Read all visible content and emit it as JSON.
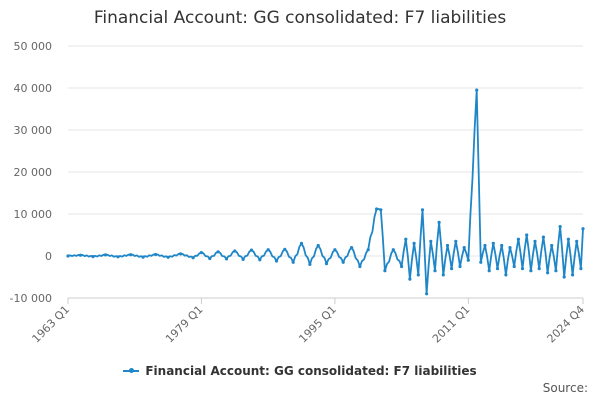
{
  "chart_data": {
    "type": "line",
    "title": "Financial Account: GG consolidated: F7 liabilities",
    "xlabel": "",
    "ylabel": "",
    "x_range": [
      "1963 Q1",
      "2024 Q4"
    ],
    "x_tick_labels": [
      "1963 Q1",
      "1979 Q1",
      "1995 Q1",
      "2011 Q1",
      "2024 Q4"
    ],
    "ylim": [
      -10000,
      50000
    ],
    "y_tick_values": [
      -10000,
      0,
      10000,
      20000,
      30000,
      40000,
      50000
    ],
    "y_tick_labels": [
      "-10 000",
      "0",
      "10 000",
      "20 000",
      "30 000",
      "40 000",
      "50 000"
    ],
    "grid": "horizontal",
    "legend_position": "bottom",
    "series": [
      {
        "name": "Financial Account: GG consolidated: F7 liabilities",
        "color": "#1f86c8",
        "points": [
          [
            "1963 Q1",
            0
          ],
          [
            "1964 Q3",
            200
          ],
          [
            "1966 Q1",
            -150
          ],
          [
            "1967 Q3",
            250
          ],
          [
            "1969 Q1",
            -200
          ],
          [
            "1970 Q3",
            300
          ],
          [
            "1972 Q1",
            -250
          ],
          [
            "1973 Q3",
            350
          ],
          [
            "1975 Q1",
            -300
          ],
          [
            "1976 Q3",
            500
          ],
          [
            "1978 Q1",
            -400
          ],
          [
            "1979 Q1",
            800
          ],
          [
            "1980 Q1",
            -600
          ],
          [
            "1981 Q1",
            1000
          ],
          [
            "1982 Q1",
            -700
          ],
          [
            "1983 Q1",
            1200
          ],
          [
            "1984 Q1",
            -800
          ],
          [
            "1985 Q1",
            1400
          ],
          [
            "1986 Q1",
            -900
          ],
          [
            "1987 Q1",
            1500
          ],
          [
            "1988 Q1",
            -1200
          ],
          [
            "1989 Q1",
            1600
          ],
          [
            "1990 Q1",
            -1500
          ],
          [
            "1991 Q1",
            3000
          ],
          [
            "1992 Q1",
            -2000
          ],
          [
            "1993 Q1",
            2500
          ],
          [
            "1994 Q1",
            -1800
          ],
          [
            "1995 Q1",
            1500
          ],
          [
            "1996 Q1",
            -1500
          ],
          [
            "1997 Q1",
            2000
          ],
          [
            "1998 Q1",
            -2500
          ],
          [
            "1999 Q1",
            1500
          ],
          [
            "2000 Q1",
            11200
          ],
          [
            "2000 Q3",
            11000
          ],
          [
            "2001 Q1",
            -3500
          ],
          [
            "2002 Q1",
            1500
          ],
          [
            "2003 Q1",
            -2500
          ],
          [
            "2003 Q3",
            4000
          ],
          [
            "2004 Q1",
            -5500
          ],
          [
            "2004 Q3",
            3000
          ],
          [
            "2005 Q1",
            -4500
          ],
          [
            "2005 Q3",
            11000
          ],
          [
            "2006 Q1",
            -9000
          ],
          [
            "2006 Q3",
            3500
          ],
          [
            "2007 Q1",
            -3500
          ],
          [
            "2007 Q3",
            8000
          ],
          [
            "2008 Q1",
            -4500
          ],
          [
            "2008 Q3",
            2500
          ],
          [
            "2009 Q1",
            -3000
          ],
          [
            "2009 Q3",
            3500
          ],
          [
            "2010 Q1",
            -2500
          ],
          [
            "2010 Q3",
            2000
          ],
          [
            "2011 Q1",
            -1000
          ],
          [
            "2012 Q1",
            39500
          ],
          [
            "2012 Q3",
            -1500
          ],
          [
            "2013 Q1",
            2500
          ],
          [
            "2013 Q3",
            -3500
          ],
          [
            "2014 Q1",
            3000
          ],
          [
            "2014 Q3",
            -3000
          ],
          [
            "2015 Q1",
            2500
          ],
          [
            "2015 Q3",
            -4500
          ],
          [
            "2016 Q1",
            2000
          ],
          [
            "2016 Q3",
            -2500
          ],
          [
            "2017 Q1",
            4000
          ],
          [
            "2017 Q3",
            -3000
          ],
          [
            "2018 Q1",
            5000
          ],
          [
            "2018 Q3",
            -3500
          ],
          [
            "2019 Q1",
            3500
          ],
          [
            "2019 Q3",
            -3000
          ],
          [
            "2020 Q1",
            4500
          ],
          [
            "2020 Q3",
            -4000
          ],
          [
            "2021 Q1",
            2500
          ],
          [
            "2021 Q3",
            -3500
          ],
          [
            "2022 Q1",
            7000
          ],
          [
            "2022 Q3",
            -5000
          ],
          [
            "2023 Q1",
            4000
          ],
          [
            "2023 Q3",
            -4500
          ],
          [
            "2024 Q1",
            3500
          ],
          [
            "2024 Q3",
            -3000
          ],
          [
            "2024 Q4",
            6500
          ]
        ]
      }
    ]
  },
  "legend": {
    "label": "Financial Account: GG consolidated: F7 liabilities"
  },
  "footer": {
    "source_label": "Source:"
  }
}
